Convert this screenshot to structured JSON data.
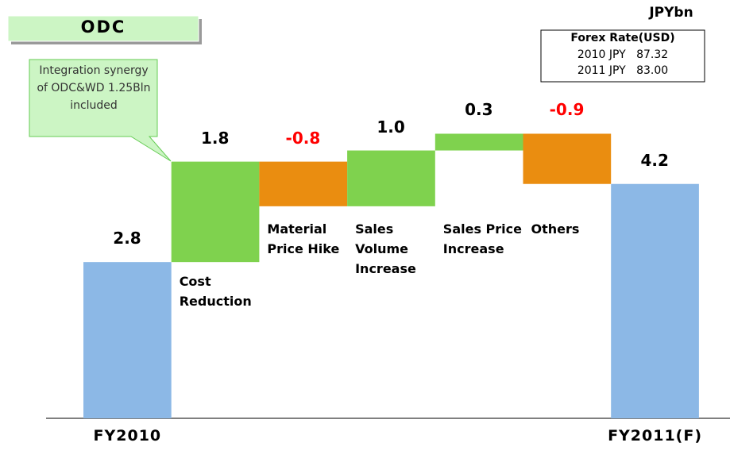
{
  "chart_data": {
    "type": "waterfall",
    "title": "ODC",
    "unit": "JPYbn",
    "forex": {
      "title": "Forex Rate(USD)",
      "lines": [
        "2010 JPY   87.32",
        "2011 JPY   83.00"
      ]
    },
    "annotation": "Integration synergy of ODC&WD 1.25Bln included",
    "categories": [
      "FY2010",
      "Cost Reduction",
      "Material Price Hike",
      "Sales Volume Increase",
      "Sales Price Increase",
      "Others",
      "FY2011(F)"
    ],
    "values": [
      2.8,
      1.8,
      -0.8,
      1.0,
      0.3,
      -0.9,
      4.2
    ],
    "value_labels": [
      "2.8",
      "1.8",
      "-0.8",
      "1.0",
      "0.3",
      "-0.9",
      "4.2"
    ],
    "total_color": "#8cb8e6",
    "increase_color": "#7fd24e",
    "decrease_color": "#ea8d10",
    "negative_label_color": "#ff0000"
  }
}
